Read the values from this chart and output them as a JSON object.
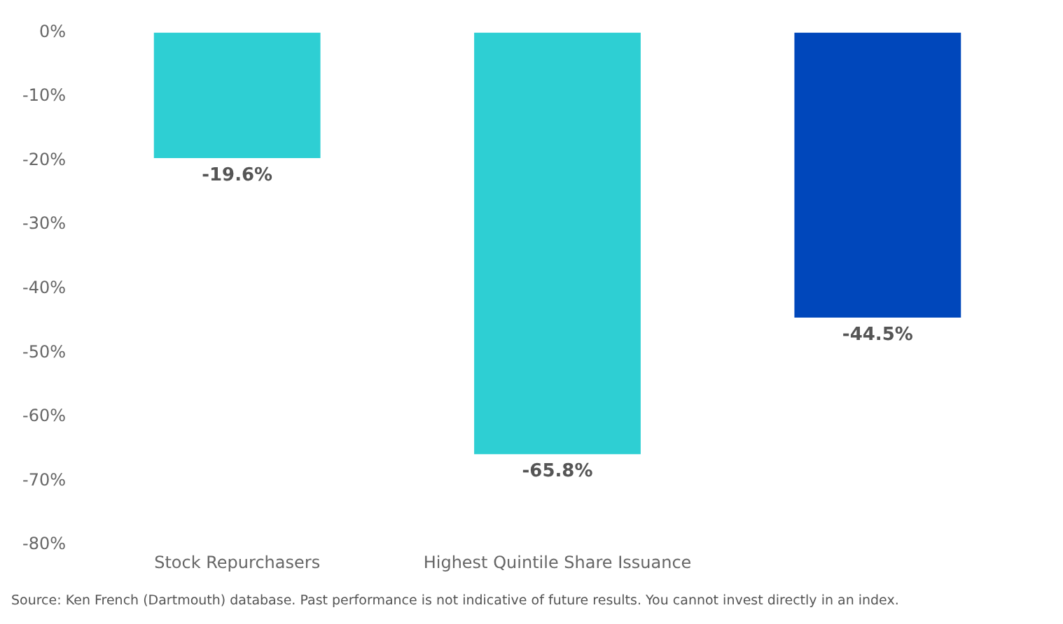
{
  "chart_data": {
    "type": "bar",
    "categories": [
      "Stock Repurchasers",
      "Highest Quintile Share Issuance",
      null
    ],
    "values": [
      -19.6,
      -65.8,
      -44.5
    ],
    "colors": [
      "#2ecfd3",
      "#2ecfd3",
      "#0047bb"
    ],
    "value_labels": [
      "-19.6%",
      "-65.8%",
      "-44.5%"
    ],
    "ylim": [
      -80,
      0
    ],
    "yticks": [
      {
        "value": 0,
        "label": "0%"
      },
      {
        "value": -10,
        "label": "-10%"
      },
      {
        "value": -20,
        "label": "-20%"
      },
      {
        "value": -30,
        "label": "-30%"
      },
      {
        "value": -40,
        "label": "-40%"
      },
      {
        "value": -50,
        "label": "-50%"
      },
      {
        "value": -60,
        "label": "-60%"
      },
      {
        "value": -70,
        "label": "-70%"
      },
      {
        "value": -80,
        "label": "-80%"
      }
    ],
    "grid": false,
    "legend": false,
    "annotations": [
      "Source: Ken French (Dartmouth) database. Past performance is not indicative of future results. You cannot invest directly in an index."
    ]
  }
}
